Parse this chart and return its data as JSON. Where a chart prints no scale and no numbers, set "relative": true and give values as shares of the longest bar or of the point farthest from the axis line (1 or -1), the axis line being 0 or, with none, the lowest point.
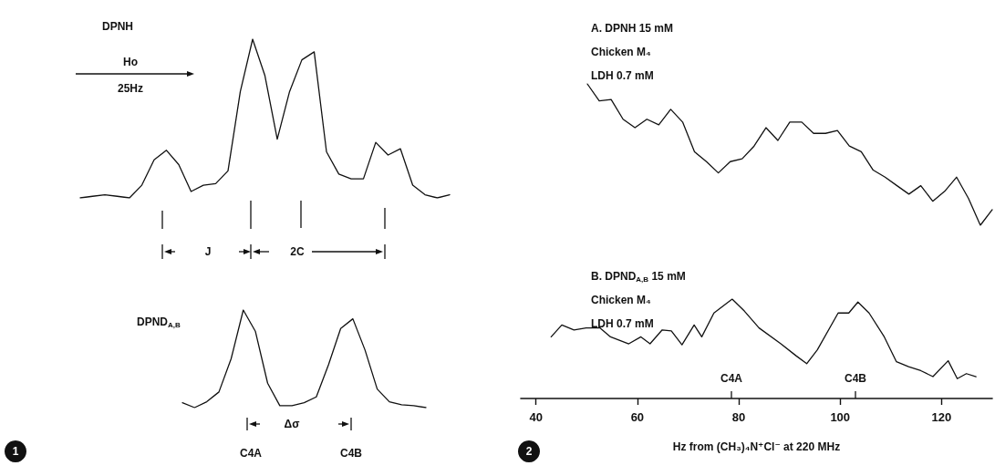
{
  "chart_data": [
    {
      "type": "line",
      "relative": true,
      "tick_labels": false,
      "title": "DPNH",
      "categories": [
        null,
        null,
        null,
        null,
        null,
        null,
        null,
        null,
        null,
        null,
        null,
        null,
        null,
        null,
        null,
        null,
        null,
        null,
        null,
        null,
        null,
        null,
        null,
        null,
        null,
        null,
        null,
        null,
        null,
        null,
        null
      ],
      "series": [
        {
          "color": "#111111",
          "values": [
            0,
            0.01,
            0.02,
            0.01,
            0,
            0.08,
            0.24,
            0.3,
            0.21,
            0.04,
            0.08,
            0.09,
            0.17,
            0.67,
            1,
            0.77,
            0.37,
            0.67,
            0.87,
            0.92,
            0.29,
            0.15,
            0.12,
            0.12,
            0.35,
            0.27,
            0.31,
            0.08,
            0.02,
            0,
            0.02
          ]
        }
      ],
      "annotations": [
        "Ho",
        "25Hz",
        "J",
        "2C"
      ]
    },
    {
      "type": "line",
      "relative": true,
      "tick_labels": false,
      "title": "DPND$_{A,B}$",
      "categories": [
        null,
        null,
        null,
        null,
        null,
        null,
        null,
        null,
        null,
        null,
        null,
        null,
        null,
        null,
        null,
        null,
        null,
        null,
        null,
        null,
        null
      ],
      "series": [
        {
          "color": "#111111",
          "values": [
            0.05,
            0,
            0.06,
            0.16,
            0.5,
            1,
            0.78,
            0.25,
            0.02,
            0.02,
            0.05,
            0.11,
            0.44,
            0.81,
            0.91,
            0.59,
            0.19,
            0.06,
            0.03,
            0.02,
            0
          ]
        }
      ],
      "annotations": [
        "C4A",
        "Δσ",
        "C4B",
        "1"
      ]
    },
    {
      "type": "line",
      "relative": true,
      "tick_labels": false,
      "title": "A. DPNH 15 mM\nChicken M₄\nLDH 0.7 mM",
      "categories": [
        null,
        null,
        null,
        null,
        null,
        null,
        null,
        null,
        null,
        null,
        null,
        null,
        null,
        null,
        null,
        null,
        null,
        null,
        null,
        null,
        null,
        null,
        null,
        null,
        null,
        null,
        null,
        null,
        null,
        null,
        null,
        null,
        null,
        null,
        null
      ],
      "series": [
        {
          "color": "#111111",
          "values": [
            1,
            0.88,
            0.89,
            0.75,
            0.69,
            0.75,
            0.71,
            0.82,
            0.73,
            0.52,
            0.45,
            0.37,
            0.45,
            0.47,
            0.56,
            0.69,
            0.6,
            0.73,
            0.73,
            0.65,
            0.65,
            0.67,
            0.56,
            0.52,
            0.39,
            0.34,
            0.28,
            0.22,
            0.28,
            0.17,
            0.24,
            0.34,
            0.19,
            0,
            0.11
          ]
        }
      ]
    },
    {
      "type": "line",
      "relative": true,
      "title": "B. DPND$_{A,B}$ 15 mM\nChicken M₄\nLDH 0.7 mM",
      "xlabel": "Hz from (CH₃)₄N⁺Cl⁻ at 220 MHz",
      "xlim": [
        37,
        130
      ],
      "xticks": [
        40,
        60,
        80,
        100,
        120
      ],
      "series": [
        {
          "color": "#111111",
          "x": [
            43.0,
            45.1,
            47.5,
            49.9,
            52.6,
            54.7,
            58.3,
            60.7,
            62.5,
            64.9,
            66.7,
            68.8,
            71.2,
            72.7,
            75.1,
            78.7,
            81.1,
            84.0,
            88.3,
            91.3,
            93.4,
            95.5,
            99.6,
            101.7,
            103.5,
            105.7,
            108.7,
            111.1,
            113.5,
            115.9,
            118.3,
            121.3,
            123.1,
            124.9,
            126.8
          ],
          "values": [
            0.62,
            0.74,
            0.69,
            0.71,
            0.71,
            0.62,
            0.55,
            0.62,
            0.55,
            0.69,
            0.68,
            0.54,
            0.74,
            0.62,
            0.86,
            1,
            0.88,
            0.71,
            0.55,
            0.43,
            0.35,
            0.49,
            0.86,
            0.86,
            0.97,
            0.86,
            0.62,
            0.37,
            0.32,
            0.28,
            0.22,
            0.38,
            0.2,
            0.25,
            0.22
          ]
        }
      ],
      "annotations": [
        "C4A",
        "C4B",
        "2"
      ]
    }
  ]
}
